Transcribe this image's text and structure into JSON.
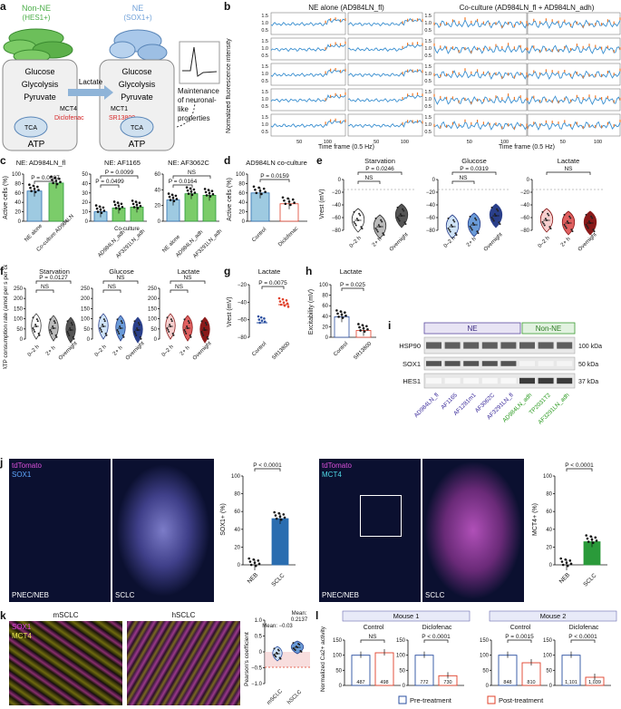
{
  "panel_labels": {
    "a": "a",
    "b": "b",
    "c": "c",
    "d": "d",
    "e": "e",
    "f": "f",
    "g": "g",
    "h": "h",
    "i": "i",
    "j": "j",
    "k": "k",
    "l": "l"
  },
  "a": {
    "nonne": "Non-NE",
    "nonne_marker": "(HES1+)",
    "ne": "NE",
    "ne_marker": "(SOX1+)",
    "glucose": "Glucose",
    "glycolysis": "Glycolysis",
    "pyruvate": "Pyruvate",
    "lactate": "Lactate",
    "mct4": "MCT4",
    "mct1": "MCT1",
    "diclofenac": "Diclofenac",
    "sr13800": "SR13800",
    "tca": "TCA",
    "atp": "ATP",
    "maintenance": "Maintenance of neuronal-like properties",
    "colors": {
      "nonne": "#4daf4a",
      "ne": "#8ab4e0",
      "inhibitor": "#d62728"
    }
  },
  "b": {
    "title_left": "NE alone (AD984LN_fl)",
    "title_right": "Co-culture (AD984LN_fl + AD984LN_adh)",
    "ylabel": "Normalized fluorescence intensity",
    "xlabel": "Time frame (0.5 Hz)",
    "yticks": [
      "1.5",
      "1.0",
      "0.5"
    ],
    "xticks": [
      "50",
      "100"
    ]
  },
  "c": {
    "title1": "NE: AD984LN_fl",
    "title2": "NE: AF1165",
    "title3": "NE: AF3062C",
    "ylabel": "Active cells (%)",
    "p1": "P = 0.0087",
    "p2a": "P = 0.0099",
    "p2b": "P = 0.0499",
    "p3a": "NS",
    "p3b": "P = 0.0164",
    "cats1": [
      "NE alone",
      "Co-culture AD984LN"
    ],
    "cats2": [
      "AD984LN_adh",
      "AF3291LN_adh"
    ],
    "cats3": [
      "NE alone",
      "AD984LN_adh",
      "AF3291LN_adh"
    ],
    "coculture": "Co-culture",
    "yticks": [
      "100",
      "80",
      "60",
      "40",
      "20",
      "0"
    ]
  },
  "d": {
    "title": "AD984LN co-culture",
    "ylabel": "Active cells (%)",
    "p": "P = 0.0159",
    "cats": [
      "Control",
      "Diclofenac"
    ],
    "yticks": [
      "100",
      "80",
      "60",
      "40",
      "20",
      "0"
    ]
  },
  "e": {
    "titles": [
      "Starvation",
      "Glucose",
      "Lactate"
    ],
    "ylabel": "Vrest (mV)",
    "p": [
      "P = 0.0246",
      "P = 0.0319",
      "NS"
    ],
    "ns": "NS",
    "cats": [
      "0–2 h",
      "2+ h",
      "Overnight"
    ],
    "yticks": [
      "0",
      "−20",
      "−40",
      "−60",
      "−80"
    ]
  },
  "f": {
    "titles": [
      "Starvation",
      "Glucose",
      "Lactate"
    ],
    "ylabel": "ATP consumption rate (amol per s per cell)",
    "p": [
      "P = 0.0127",
      "NS",
      "NS"
    ],
    "ns": "NS",
    "cats": [
      "0–2 h",
      "2+ h",
      "Overnight"
    ],
    "yticks": [
      "250",
      "200",
      "150",
      "100",
      "50",
      "0"
    ]
  },
  "g": {
    "title": "Lactate",
    "ylabel": "Vrest (mV)",
    "p": "P = 0.0075",
    "cats": [
      "Control",
      "SR13800"
    ],
    "yticks": [
      "−20",
      "−40",
      "−60",
      "−80"
    ]
  },
  "h": {
    "title": "Lactate",
    "ylabel": "Excitability (mV)",
    "p": "P = 0.025",
    "cats": [
      "Control",
      "SR13800"
    ],
    "yticks": [
      "100",
      "80",
      "60",
      "40",
      "20",
      "0"
    ]
  },
  "i": {
    "ne": "NE",
    "nonne": "Non-NE",
    "rows": [
      "HSP90",
      "SOX1",
      "HES1"
    ],
    "kda": [
      "100 kDa",
      "50 kDa",
      "37 kDa"
    ],
    "lanes": [
      "AD984LN_fl",
      "AF1165",
      "AF1281m1",
      "AF3062C",
      "AF3291LN_fl",
      "AD984LN_adh",
      "TP2031T2",
      "AF3291LN_adh"
    ]
  },
  "j": {
    "tdtomato": "tdTomato",
    "sox1": "SOX1",
    "mct4": "MCT4",
    "pnec": "PNEC/NEB",
    "sclc": "SCLC",
    "p1": "P < 0.0001",
    "p2": "P < 0.0001",
    "ylabel1": "SOX1+ (%)",
    "ylabel2": "MCT4+ (%)",
    "cats": [
      "NEB",
      "SCLC"
    ],
    "yticks1": [
      "100",
      "80",
      "60",
      "40",
      "20",
      "0"
    ],
    "yticks2": [
      "100",
      "80",
      "60",
      "40",
      "20",
      "0"
    ]
  },
  "k": {
    "sox1": "SOX1",
    "mct4": "MCT4",
    "msclc": "mSCLC",
    "hsclc": "hSCLC",
    "ylabel": "Pearson's coefficient",
    "mean1": "Mean: −0.03",
    "mean2a": "Mean:",
    "mean2b": "0.2137",
    "cats": [
      "mSCLC",
      "hSCLC"
    ],
    "yticks": [
      "1.0",
      "0.5",
      "0",
      "−0.5",
      "−1.0"
    ]
  },
  "l": {
    "mouse1": "Mouse 1",
    "mouse2": "Mouse 2",
    "control": "Control",
    "diclofenac": "Diclofenac",
    "ylabel": "Normalized Ca2+ activity",
    "p_m1_ctrl": "NS",
    "p_m1_dic": "P < 0.0001",
    "p_m2_ctrl": "P = 0.0015",
    "p_m2_dic": "P < 0.0001",
    "n": [
      "487",
      "498",
      "772",
      "730",
      "848",
      "810",
      "1,101",
      "1,039"
    ],
    "legend_pre": "Pre-treatment",
    "legend_post": "Post-treatment",
    "yticks": [
      "150",
      "100",
      "50",
      "0"
    ]
  },
  "chart_data": [
    {
      "type": "bar",
      "panel": "c1",
      "categories": [
        "NE alone",
        "Co-culture AD984LN"
      ],
      "values": [
        64,
        81
      ],
      "ylim": [
        0,
        100
      ],
      "ylabel": "Active cells (%)",
      "title": "NE: AD984LN_fl"
    },
    {
      "type": "bar",
      "panel": "c2",
      "categories": [
        "NE alone",
        "AD984LN_adh",
        "AF3291LN_adh"
      ],
      "values": [
        10,
        14,
        15
      ],
      "ylim": [
        0,
        50
      ],
      "ylabel": "",
      "title": "NE: AF1165"
    },
    {
      "type": "bar",
      "panel": "c3",
      "categories": [
        "NE alone",
        "AD984LN_adh",
        "AF3291LN_adh"
      ],
      "values": [
        27,
        35,
        33
      ],
      "ylim": [
        0,
        60
      ],
      "ylabel": "",
      "title": "NE: AF3062C"
    },
    {
      "type": "bar",
      "panel": "d",
      "categories": [
        "Control",
        "Diclofenac"
      ],
      "values": [
        60,
        37
      ],
      "ylim": [
        0,
        100
      ],
      "ylabel": "Active cells (%)",
      "title": "AD984LN co-culture"
    },
    {
      "type": "bar",
      "panel": "h",
      "categories": [
        "Control",
        "SR13800"
      ],
      "values": [
        39,
        13
      ],
      "ylim": [
        0,
        100
      ],
      "ylabel": "Excitability (mV)",
      "title": "Lactate"
    },
    {
      "type": "bar",
      "panel": "j1",
      "categories": [
        "NEB",
        "SCLC"
      ],
      "values": [
        0,
        52
      ],
      "ylim": [
        0,
        100
      ],
      "ylabel": "SOX1+ (%)"
    },
    {
      "type": "bar",
      "panel": "j2",
      "categories": [
        "NEB",
        "SCLC"
      ],
      "values": [
        0,
        26
      ],
      "ylim": [
        0,
        100
      ],
      "ylabel": "MCT4+ (%)"
    },
    {
      "type": "bar",
      "panel": "l1",
      "categories": [
        "Pre-treatment",
        "Post-treatment"
      ],
      "values": [
        100,
        108
      ],
      "ylim": [
        0,
        150
      ],
      "title": "Mouse 1 Control"
    },
    {
      "type": "bar",
      "panel": "l2",
      "categories": [
        "Pre-treatment",
        "Post-treatment"
      ],
      "values": [
        100,
        32
      ],
      "ylim": [
        0,
        150
      ],
      "title": "Mouse 1 Diclofenac"
    },
    {
      "type": "bar",
      "panel": "l3",
      "categories": [
        "Pre-treatment",
        "Post-treatment"
      ],
      "values": [
        100,
        75
      ],
      "ylim": [
        0,
        150
      ],
      "title": "Mouse 2 Control"
    },
    {
      "type": "bar",
      "panel": "l4",
      "categories": [
        "Pre-treatment",
        "Post-treatment"
      ],
      "values": [
        100,
        27
      ],
      "ylim": [
        0,
        150
      ],
      "title": "Mouse 2 Diclofenac"
    }
  ]
}
